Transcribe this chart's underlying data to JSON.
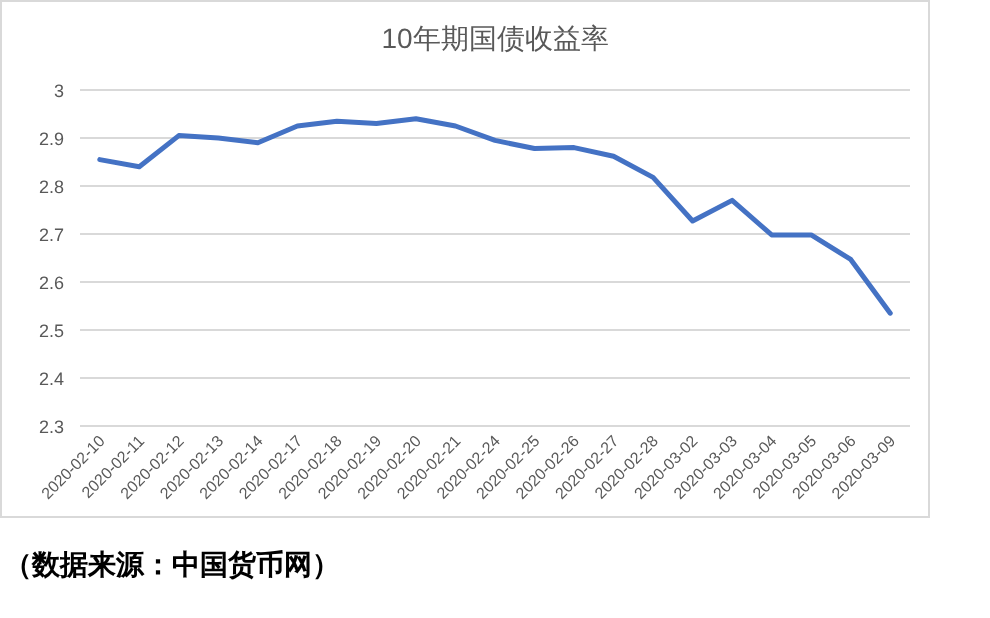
{
  "chart_data": {
    "type": "line",
    "title": "10年期国债收益率",
    "categories": [
      "2020-02-10",
      "2020-02-11",
      "2020-02-12",
      "2020-02-13",
      "2020-02-14",
      "2020-02-17",
      "2020-02-18",
      "2020-02-19",
      "2020-02-20",
      "2020-02-21",
      "2020-02-24",
      "2020-02-25",
      "2020-02-26",
      "2020-02-27",
      "2020-02-28",
      "2020-03-02",
      "2020-03-03",
      "2020-03-04",
      "2020-03-05",
      "2020-03-06",
      "2020-03-09"
    ],
    "series": [
      {
        "color": "#4472c4",
        "values": [
          2.855,
          2.84,
          2.905,
          2.9,
          2.89,
          2.925,
          2.935,
          2.93,
          2.94,
          2.925,
          2.895,
          2.878,
          2.88,
          2.862,
          2.818,
          2.727,
          2.77,
          2.698,
          2.698,
          2.647,
          2.535
        ]
      }
    ],
    "ylim": [
      2.3,
      3.0
    ],
    "yticks": [
      2.3,
      2.4,
      2.5,
      2.6,
      2.7,
      2.8,
      2.9,
      3
    ],
    "grid": "y",
    "marker": "none",
    "line_style": "solid",
    "annotations": [
      "（数据来源：中国货币网）"
    ]
  }
}
